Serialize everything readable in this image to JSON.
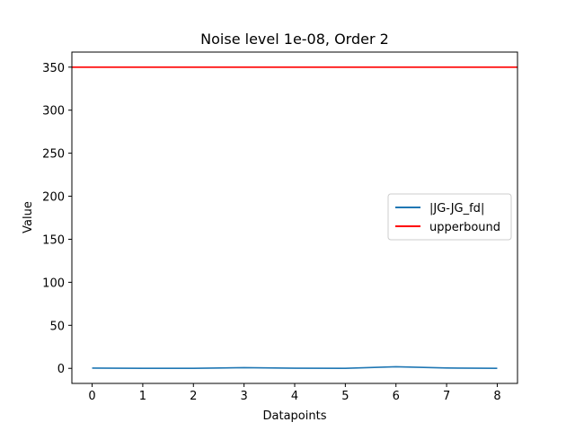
{
  "chart_data": {
    "type": "line",
    "title": "Noise level 1e-08, Order 2",
    "xlabel": "Datapoints",
    "ylabel": "Value",
    "xlim": [
      -0.4,
      8.4
    ],
    "ylim": [
      -17.5,
      367.5
    ],
    "xticks": [
      0,
      1,
      2,
      3,
      4,
      5,
      6,
      7,
      8
    ],
    "yticks": [
      0,
      50,
      100,
      150,
      200,
      250,
      300,
      350
    ],
    "grid": false,
    "legend_position": "center-right",
    "series": [
      {
        "name": "|JG-JG_fd|",
        "color": "#1f77b4",
        "x": [
          0,
          1,
          2,
          3,
          4,
          5,
          6,
          7,
          8
        ],
        "y": [
          0.3,
          0.0,
          0.0,
          0.8,
          0.2,
          0.0,
          1.9,
          0.4,
          0.0
        ]
      },
      {
        "name": "upperbound",
        "color": "#ff0000",
        "type": "hline",
        "y": 350
      }
    ]
  }
}
